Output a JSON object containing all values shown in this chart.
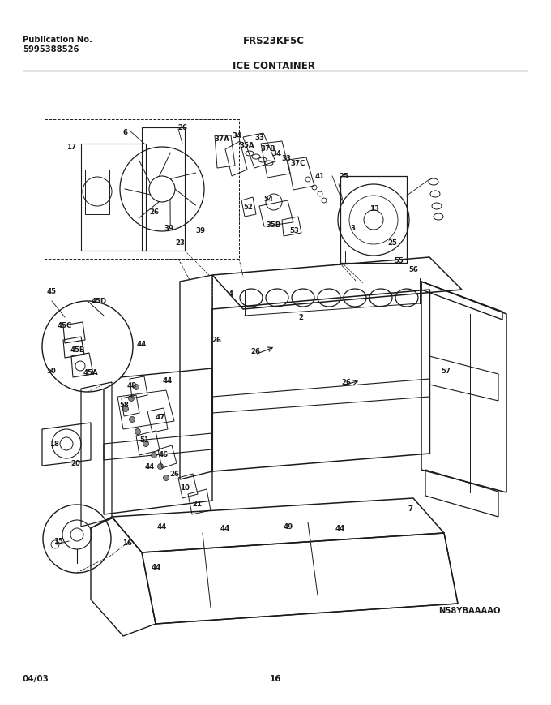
{
  "title_model": "FRS23KF5C",
  "title_section": "ICE CONTAINER",
  "pub_label": "Publication No.",
  "pub_number": "5995388526",
  "diagram_code": "N58YBAAAAO",
  "date_code": "04/03",
  "page_number": "16",
  "bg_color": "#ffffff",
  "line_color": "#1a1a1a",
  "fig_width": 6.8,
  "fig_height": 8.7,
  "dpi": 100,
  "part_labels": [
    [
      155,
      163,
      "6"
    ],
    [
      225,
      158,
      "26"
    ],
    [
      274,
      172,
      "37A"
    ],
    [
      293,
      167,
      "34"
    ],
    [
      305,
      180,
      "35A"
    ],
    [
      320,
      170,
      "33"
    ],
    [
      331,
      183,
      "37B"
    ],
    [
      342,
      190,
      "34"
    ],
    [
      353,
      195,
      "33"
    ],
    [
      368,
      202,
      "37C"
    ],
    [
      395,
      218,
      "41"
    ],
    [
      424,
      218,
      "25"
    ],
    [
      331,
      245,
      "54"
    ],
    [
      306,
      255,
      "52"
    ],
    [
      338,
      278,
      "35B"
    ],
    [
      363,
      285,
      "53"
    ],
    [
      462,
      258,
      "13"
    ],
    [
      484,
      300,
      "25"
    ],
    [
      492,
      322,
      "55"
    ],
    [
      510,
      333,
      "56"
    ],
    [
      88,
      182,
      "17"
    ],
    [
      190,
      262,
      "26"
    ],
    [
      208,
      282,
      "39"
    ],
    [
      247,
      285,
      "39"
    ],
    [
      222,
      300,
      "23"
    ],
    [
      435,
      282,
      "3"
    ],
    [
      285,
      363,
      "4"
    ],
    [
      267,
      420,
      "26"
    ],
    [
      315,
      434,
      "26"
    ],
    [
      371,
      392,
      "2"
    ],
    [
      427,
      472,
      "26"
    ],
    [
      64,
      360,
      "45"
    ],
    [
      122,
      372,
      "45D"
    ],
    [
      80,
      402,
      "45C"
    ],
    [
      96,
      432,
      "45B"
    ],
    [
      63,
      458,
      "50"
    ],
    [
      112,
      460,
      "45A"
    ],
    [
      163,
      476,
      "48"
    ],
    [
      153,
      500,
      "58"
    ],
    [
      198,
      515,
      "47"
    ],
    [
      178,
      543,
      "51"
    ],
    [
      202,
      561,
      "46"
    ],
    [
      185,
      576,
      "44"
    ],
    [
      215,
      585,
      "26"
    ],
    [
      228,
      602,
      "10"
    ],
    [
      243,
      622,
      "21"
    ],
    [
      207,
      470,
      "44"
    ],
    [
      67,
      548,
      "18"
    ],
    [
      93,
      572,
      "20"
    ],
    [
      200,
      650,
      "44"
    ],
    [
      278,
      652,
      "44"
    ],
    [
      356,
      650,
      "49"
    ],
    [
      420,
      652,
      "44"
    ],
    [
      157,
      670,
      "16"
    ],
    [
      72,
      668,
      "15"
    ],
    [
      193,
      700,
      "44"
    ],
    [
      550,
      458,
      "57"
    ],
    [
      506,
      628,
      "7"
    ],
    [
      175,
      425,
      "44"
    ]
  ]
}
